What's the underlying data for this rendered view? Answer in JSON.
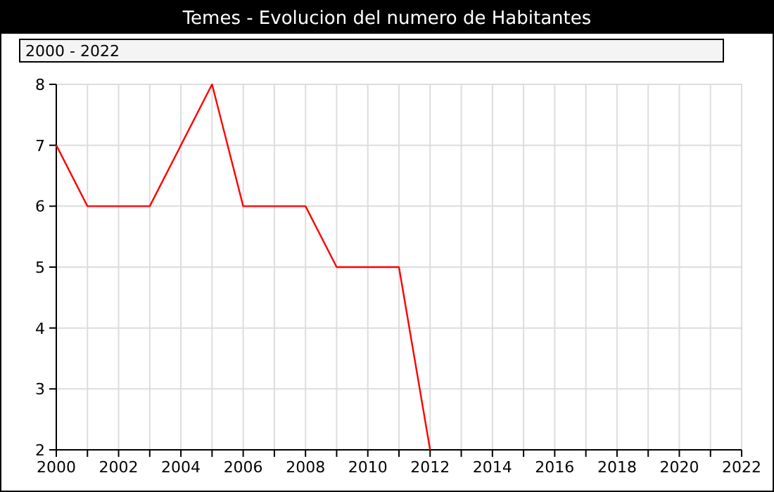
{
  "chart_data": {
    "type": "line",
    "title": "Temes - Evolucion del numero de Habitantes",
    "subtitle": "2000 - 2022",
    "x": [
      2000,
      2001,
      2002,
      2003,
      2004,
      2005,
      2006,
      2007,
      2008,
      2009,
      2010,
      2011,
      2012
    ],
    "series": [
      {
        "color": "#ff0000",
        "values": [
          7,
          6,
          6,
          6,
          7,
          8,
          6,
          6,
          6,
          5,
          5,
          5,
          2
        ]
      }
    ],
    "xlim": [
      2000,
      2022
    ],
    "xticks": [
      2000,
      {
        "value": 2001,
        "label": null
      },
      2002,
      {
        "value": 2003,
        "label": null
      },
      2004,
      {
        "value": 2005,
        "label": null
      },
      2006,
      {
        "value": 2007,
        "label": null
      },
      2008,
      {
        "value": 2009,
        "label": null
      },
      2010,
      {
        "value": 2011,
        "label": null
      },
      2012,
      {
        "value": 2013,
        "label": null
      },
      2014,
      {
        "value": 2015,
        "label": null
      },
      2016,
      {
        "value": 2017,
        "label": null
      },
      2018,
      {
        "value": 2019,
        "label": null
      },
      2020,
      {
        "value": 2021,
        "label": null
      },
      2022
    ],
    "ylim": [
      2,
      8
    ],
    "yticks": [
      2,
      3,
      4,
      5,
      6,
      7,
      8
    ],
    "grid": true,
    "marker": "none",
    "line_style": "solid"
  }
}
